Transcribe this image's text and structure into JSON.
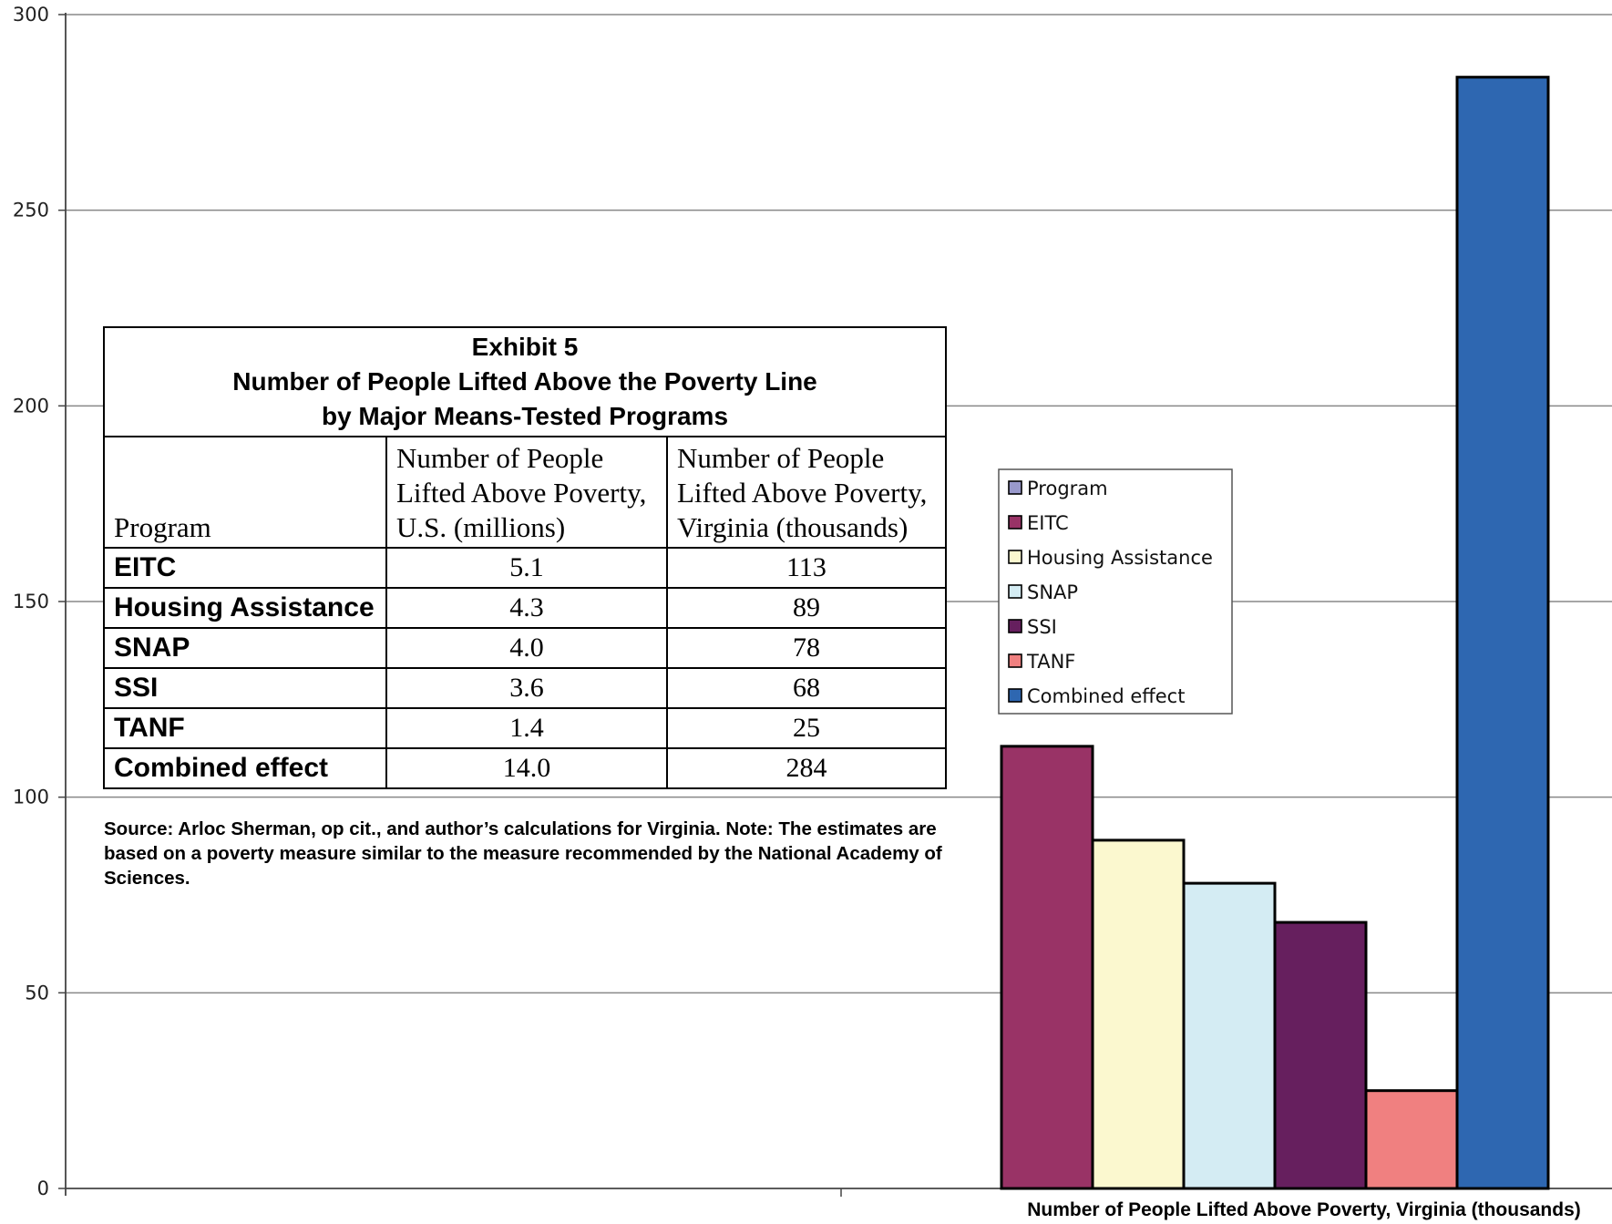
{
  "chart_data": {
    "type": "bar",
    "categories": [
      "Program",
      "EITC",
      "Housing Assistance",
      "SNAP",
      "SSI",
      "TANF",
      "Combined effect"
    ],
    "series": [
      {
        "name": "Program",
        "value": null,
        "color": "#9999cc"
      },
      {
        "name": "EITC",
        "value": 113,
        "color": "#993366"
      },
      {
        "name": "Housing Assistance",
        "value": 89,
        "color": "#fbf8cf"
      },
      {
        "name": "SNAP",
        "value": 78,
        "color": "#d4ecf3"
      },
      {
        "name": "SSI",
        "value": 68,
        "color": "#661f5e"
      },
      {
        "name": "TANF",
        "value": 25,
        "color": "#f08080"
      },
      {
        "name": "Combined effect",
        "value": 284,
        "color": "#2e67b1"
      }
    ],
    "xlabel": "Number of People Lifted Above Poverty, Virginia (thousands)",
    "ylabel": "",
    "ylim": [
      0,
      300
    ],
    "yticks": [
      0,
      50,
      100,
      150,
      200,
      250,
      300
    ],
    "grid": true,
    "legend_position": "middle-right"
  },
  "table": {
    "title_lines": [
      "Exhibit 5",
      "Number of People Lifted Above the Poverty Line",
      "by Major Means-Tested Programs"
    ],
    "headers": [
      "Program",
      "Number of People Lifted Above Poverty, U.S. (millions)",
      "Number of People Lifted Above Poverty, Virginia (thousands)"
    ],
    "rows": [
      [
        "EITC",
        "5.1",
        "113"
      ],
      [
        "Housing Assistance",
        "4.3",
        "89"
      ],
      [
        "SNAP",
        "4.0",
        "78"
      ],
      [
        "SSI",
        "3.6",
        "68"
      ],
      [
        "TANF",
        "1.4",
        "25"
      ],
      [
        "Combined effect",
        "14.0",
        "284"
      ]
    ]
  },
  "source_note": "Source: Arloc Sherman, op cit., and author’s calculations for Virginia. Note: The estimates are based on a poverty measure similar to the measure recommended by the National Academy of Sciences."
}
